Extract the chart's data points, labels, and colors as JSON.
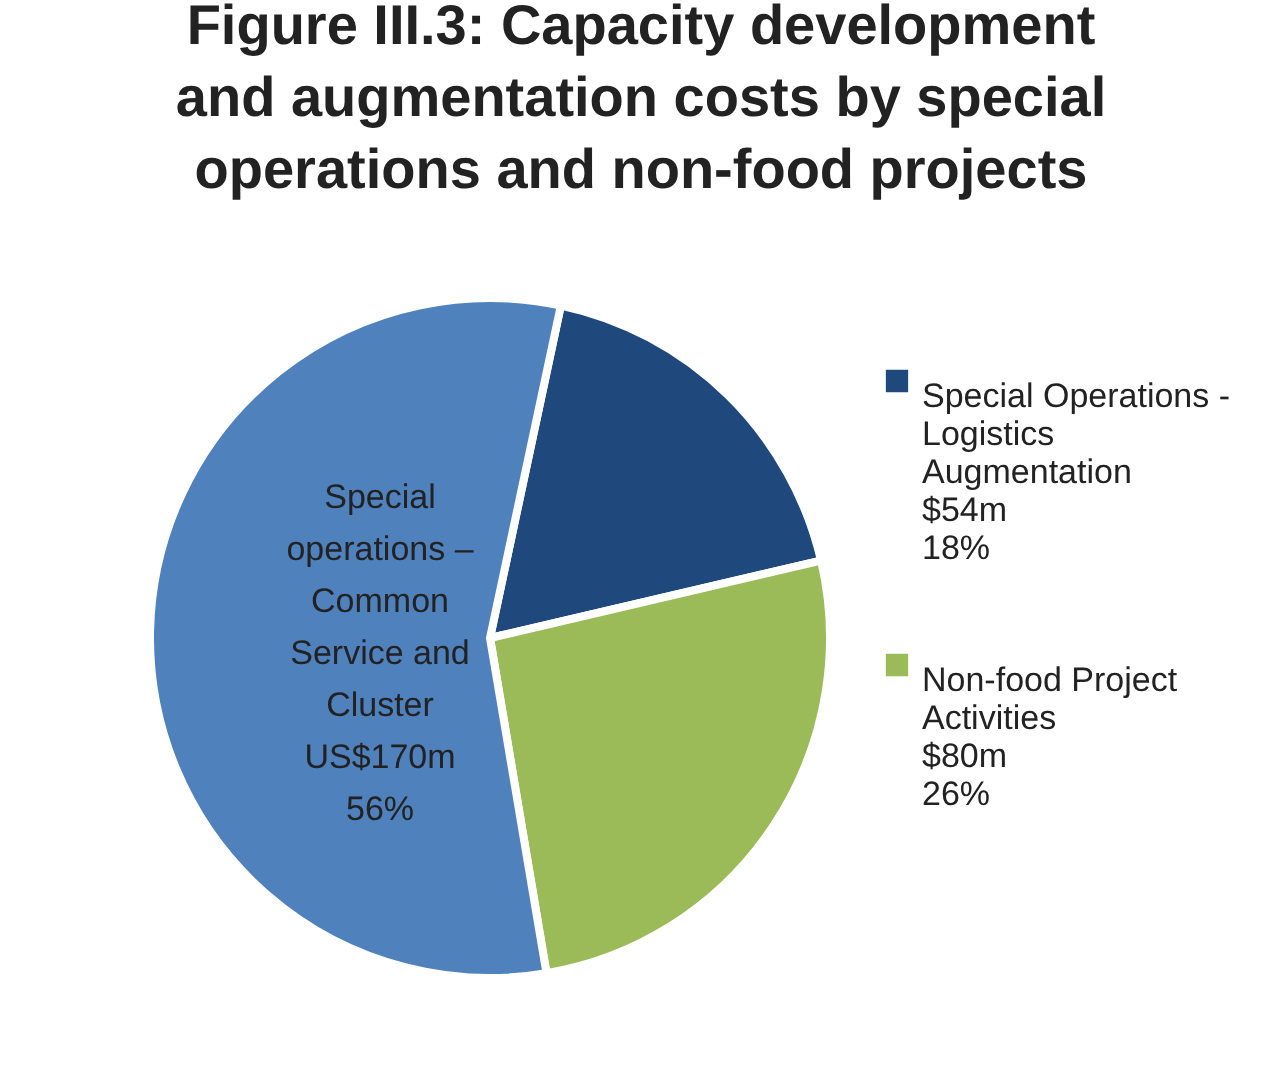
{
  "chart_data": {
    "type": "pie",
    "title": "Figure III.3: Capacity development and augmentation costs by special operations and non-food projects",
    "categories": [
      "Special Operations - Logistics Augmentation",
      "Non-food Project Activities",
      "Special operations – Common Service and Cluster"
    ],
    "values": [
      18,
      26,
      56
    ],
    "value_labels": [
      "$54m 18%",
      "$80m 26%",
      "US$170m 56%"
    ],
    "colors": [
      "#1f497d",
      "#9bbb59",
      "#4f81bd"
    ],
    "legend": "right"
  }
}
